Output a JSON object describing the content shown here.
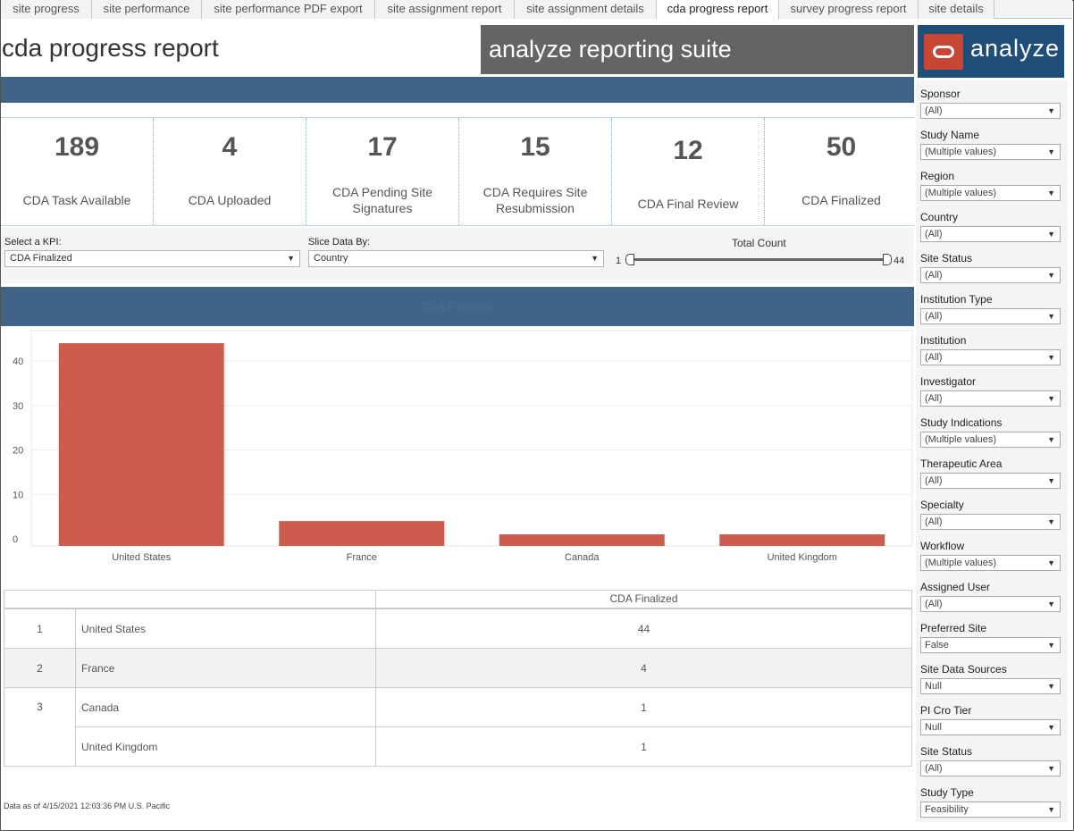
{
  "tabs": [
    {
      "label": "site progress",
      "active": false
    },
    {
      "label": "site performance",
      "active": false
    },
    {
      "label": "site performance PDF export",
      "active": false
    },
    {
      "label": "site assignment report",
      "active": false
    },
    {
      "label": "site assignment details",
      "active": false
    },
    {
      "label": "cda progress report",
      "active": true
    },
    {
      "label": "survey progress report",
      "active": false
    },
    {
      "label": "site details",
      "active": false
    }
  ],
  "header": {
    "title": "cda progress report",
    "suite_banner": "analyze reporting suite",
    "logo_text": "analyze"
  },
  "kpis": [
    {
      "value": "189",
      "label": "CDA Task Available"
    },
    {
      "value": "4",
      "label": "CDA Uploaded"
    },
    {
      "value": "17",
      "label": "CDA Pending Site Signatures"
    },
    {
      "value": "15",
      "label": "CDA Requires Site Resubmission"
    },
    {
      "value": "12",
      "label": "CDA Final Review"
    },
    {
      "value": "50",
      "label": "CDA Finalized"
    }
  ],
  "controls": {
    "kpi_label": "Select a KPI:",
    "kpi_value": "CDA Finalized",
    "slice_label": "Slice Data By:",
    "slice_value": "Country",
    "slider_title": "Total Count",
    "slider_min": "1",
    "slider_max": "44"
  },
  "chart_band_title": "CDA Finalized",
  "chart_data": {
    "type": "bar",
    "categories": [
      "United States",
      "France",
      "Canada",
      "United Kingdom"
    ],
    "values": [
      44,
      4,
      1,
      1
    ],
    "yticks": [
      0,
      10,
      20,
      30,
      40
    ],
    "ylim": [
      0,
      45
    ],
    "bar_color": "#cd5c4e",
    "grid": true
  },
  "table": {
    "header": "CDA Finalized",
    "rows": [
      {
        "rank": "1",
        "country": "United States",
        "value": "44"
      },
      {
        "rank": "2",
        "country": "France",
        "value": "4"
      },
      {
        "rank": "3",
        "country": "Canada",
        "value": "1"
      },
      {
        "rank": "",
        "country": "United Kingdom",
        "value": "1"
      }
    ]
  },
  "footnote": "Data as of 4/15/2021 12:03:36 PM U.S. Pacific",
  "filters": [
    {
      "label": "Sponsor",
      "value": "(All)"
    },
    {
      "label": "Study Name",
      "value": "(Multiple values)"
    },
    {
      "label": "Region",
      "value": "(Multiple values)"
    },
    {
      "label": "Country",
      "value": "(All)"
    },
    {
      "label": "Site Status",
      "value": "(All)"
    },
    {
      "label": "Institution Type",
      "value": "(All)"
    },
    {
      "label": "Institution",
      "value": "(All)"
    },
    {
      "label": "Investigator",
      "value": "(All)"
    },
    {
      "label": "Study Indications",
      "value": "(Multiple values)"
    },
    {
      "label": "Therapeutic Area",
      "value": "(All)"
    },
    {
      "label": "Specialty",
      "value": "(All)"
    },
    {
      "label": "Workflow",
      "value": "(Multiple values)"
    },
    {
      "label": "Assigned User",
      "value": "(All)"
    },
    {
      "label": "Preferred Site",
      "value": "False"
    },
    {
      "label": "Site Data Sources",
      "value": "Null"
    },
    {
      "label": "PI Cro Tier",
      "value": "Null"
    },
    {
      "label": "Site Status",
      "value": "(All)"
    },
    {
      "label": "Study Type",
      "value": "Feasibility"
    }
  ],
  "colors": {
    "header_blue": "#3f6487",
    "logo_blue": "#1f4e79",
    "logo_red": "#c74634",
    "banner_gray": "#646464"
  }
}
